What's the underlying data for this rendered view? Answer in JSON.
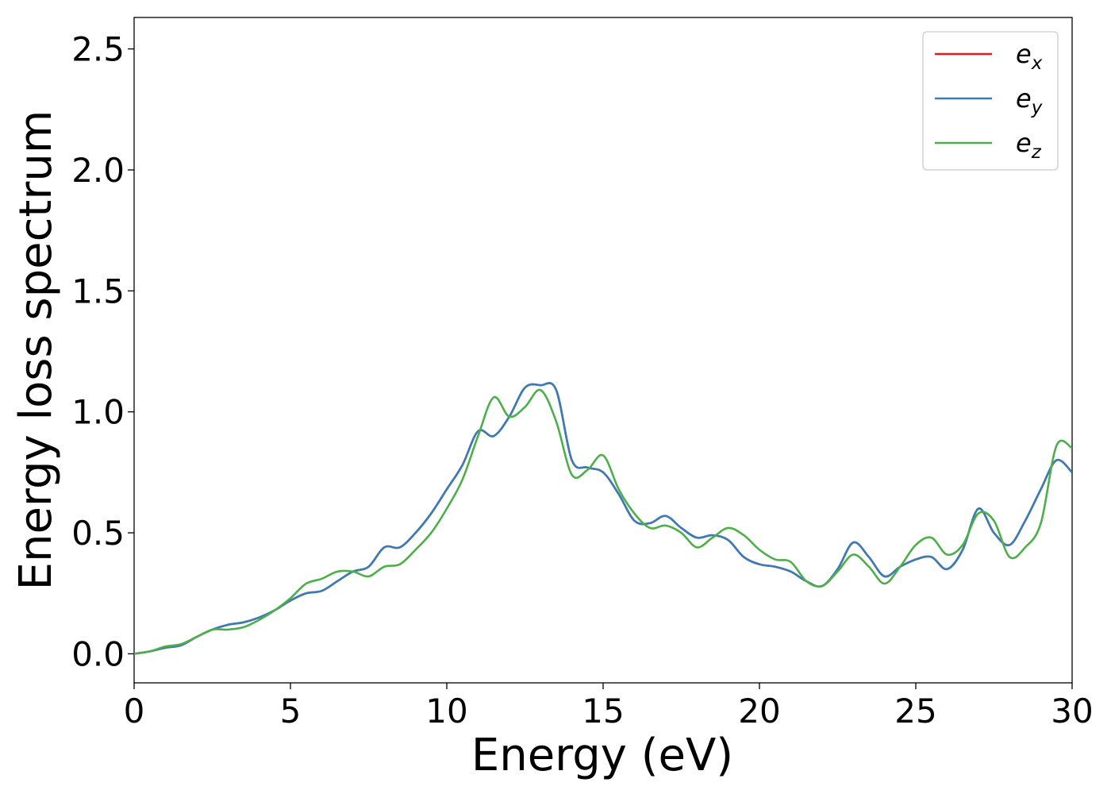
{
  "chart_data": {
    "type": "line",
    "title": "",
    "xlabel": "Energy (eV)",
    "ylabel": "Energy loss spectrum",
    "xlim": [
      0,
      30
    ],
    "ylim": [
      -0.12,
      2.63
    ],
    "xticks": [
      0,
      5,
      10,
      15,
      20,
      25,
      30
    ],
    "yticks": [
      0.0,
      0.5,
      1.0,
      1.5,
      2.0,
      2.5
    ],
    "xtick_labels": [
      "0",
      "5",
      "10",
      "15",
      "20",
      "25",
      "30"
    ],
    "ytick_labels": [
      "0.0",
      "0.5",
      "1.0",
      "1.5",
      "2.0",
      "2.5"
    ],
    "grid": false,
    "legend_position": "top-right",
    "series": [
      {
        "name": "e_x",
        "label_base": "e",
        "label_sub": "x",
        "color": "#e41a1c",
        "x": [
          0,
          0.5,
          1,
          1.5,
          2,
          2.5,
          3,
          3.5,
          4,
          4.5,
          5,
          5.5,
          6,
          6.5,
          7,
          7.5,
          8,
          8.5,
          9,
          9.5,
          10,
          10.5,
          11,
          11.5,
          12,
          12.5,
          13,
          13.5,
          14,
          14.5,
          15,
          15.5,
          16,
          16.5,
          17,
          17.5,
          18,
          18.5,
          19,
          19.5,
          20,
          20.5,
          21,
          21.5,
          22,
          22.5,
          23,
          23.5,
          24,
          24.5,
          25,
          25.5,
          26,
          26.5,
          27,
          27.5,
          28,
          28.5,
          29,
          29.5,
          30
        ],
        "y": [
          0.0,
          0.01,
          0.025,
          0.035,
          0.07,
          0.1,
          0.12,
          0.13,
          0.15,
          0.18,
          0.22,
          0.25,
          0.26,
          0.3,
          0.34,
          0.36,
          0.44,
          0.44,
          0.5,
          0.58,
          0.68,
          0.78,
          0.92,
          0.9,
          0.98,
          1.1,
          1.11,
          1.09,
          0.8,
          0.77,
          0.75,
          0.66,
          0.55,
          0.54,
          0.57,
          0.52,
          0.48,
          0.49,
          0.47,
          0.4,
          0.37,
          0.36,
          0.34,
          0.3,
          0.28,
          0.35,
          0.46,
          0.4,
          0.32,
          0.36,
          0.39,
          0.4,
          0.35,
          0.43,
          0.6,
          0.5,
          0.45,
          0.55,
          0.68,
          0.8,
          0.75
        ]
      },
      {
        "name": "e_y",
        "label_base": "e",
        "label_sub": "y",
        "color": "#377eb8",
        "x": [
          0,
          0.5,
          1,
          1.5,
          2,
          2.5,
          3,
          3.5,
          4,
          4.5,
          5,
          5.5,
          6,
          6.5,
          7,
          7.5,
          8,
          8.5,
          9,
          9.5,
          10,
          10.5,
          11,
          11.5,
          12,
          12.5,
          13,
          13.5,
          14,
          14.5,
          15,
          15.5,
          16,
          16.5,
          17,
          17.5,
          18,
          18.5,
          19,
          19.5,
          20,
          20.5,
          21,
          21.5,
          22,
          22.5,
          23,
          23.5,
          24,
          24.5,
          25,
          25.5,
          26,
          26.5,
          27,
          27.5,
          28,
          28.5,
          29,
          29.5,
          30
        ],
        "y": [
          0.0,
          0.01,
          0.025,
          0.035,
          0.07,
          0.1,
          0.12,
          0.13,
          0.15,
          0.18,
          0.22,
          0.25,
          0.26,
          0.3,
          0.34,
          0.36,
          0.44,
          0.44,
          0.5,
          0.58,
          0.68,
          0.78,
          0.92,
          0.9,
          0.98,
          1.1,
          1.11,
          1.09,
          0.8,
          0.77,
          0.75,
          0.66,
          0.55,
          0.54,
          0.57,
          0.52,
          0.48,
          0.49,
          0.47,
          0.4,
          0.37,
          0.36,
          0.34,
          0.3,
          0.28,
          0.35,
          0.46,
          0.4,
          0.32,
          0.36,
          0.39,
          0.4,
          0.35,
          0.43,
          0.6,
          0.5,
          0.45,
          0.55,
          0.68,
          0.8,
          0.75
        ]
      },
      {
        "name": "e_z",
        "label_base": "e",
        "label_sub": "z",
        "color": "#4daf4a",
        "x": [
          0,
          0.5,
          1,
          1.5,
          2,
          2.5,
          3,
          3.5,
          4,
          4.5,
          5,
          5.5,
          6,
          6.5,
          7,
          7.5,
          8,
          8.5,
          9,
          9.5,
          10,
          10.5,
          11,
          11.5,
          12,
          12.5,
          13,
          13.5,
          14,
          14.5,
          15,
          15.5,
          16,
          16.5,
          17,
          17.5,
          18,
          18.5,
          19,
          19.5,
          20,
          20.5,
          21,
          21.5,
          22,
          22.5,
          23,
          23.5,
          24,
          24.5,
          25,
          25.5,
          26,
          26.5,
          27,
          27.5,
          28,
          28.5,
          29,
          29.5,
          30
        ],
        "y": [
          0.0,
          0.01,
          0.03,
          0.04,
          0.07,
          0.1,
          0.1,
          0.11,
          0.14,
          0.18,
          0.23,
          0.29,
          0.31,
          0.34,
          0.34,
          0.32,
          0.36,
          0.37,
          0.43,
          0.5,
          0.6,
          0.72,
          0.9,
          1.06,
          0.98,
          1.02,
          1.09,
          0.96,
          0.74,
          0.76,
          0.82,
          0.68,
          0.58,
          0.52,
          0.53,
          0.5,
          0.44,
          0.48,
          0.52,
          0.49,
          0.43,
          0.39,
          0.38,
          0.3,
          0.28,
          0.34,
          0.41,
          0.36,
          0.29,
          0.36,
          0.45,
          0.48,
          0.41,
          0.45,
          0.58,
          0.55,
          0.4,
          0.44,
          0.54,
          0.86,
          0.85
        ]
      }
    ]
  }
}
